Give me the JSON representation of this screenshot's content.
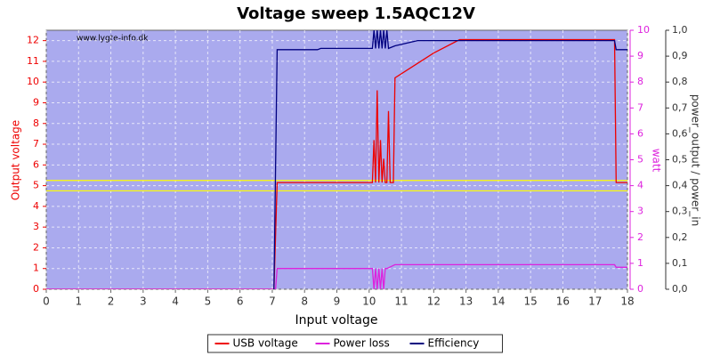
{
  "chart_data": {
    "type": "line",
    "title": "Voltage sweep 1.5AQC12V",
    "watermark": "www.lygte-info.dk",
    "xlabel": "Input voltage",
    "ylabel": "Output voltage",
    "y2label": "watt",
    "y3label": "power_output / power_in",
    "xlim": [
      0,
      18
    ],
    "xticks": [
      0,
      1,
      2,
      3,
      4,
      5,
      6,
      7,
      8,
      9,
      10,
      11,
      12,
      13,
      14,
      15,
      16,
      17,
      18
    ],
    "ylim": [
      0,
      12.5
    ],
    "yticks": [
      0,
      1,
      2,
      3,
      4,
      5,
      6,
      7,
      8,
      9,
      10,
      11,
      12
    ],
    "y2lim": [
      0,
      10
    ],
    "y2ticks": [
      0,
      1,
      2,
      3,
      4,
      5,
      6,
      7,
      8,
      9,
      10
    ],
    "y3lim": [
      0,
      1
    ],
    "y3ticks": [
      {
        "value": 0,
        "label": "0,0"
      },
      {
        "value": 0.1,
        "label": "0,1"
      },
      {
        "value": 0.2,
        "label": "0,2"
      },
      {
        "value": 0.3,
        "label": "0,3"
      },
      {
        "value": 0.4,
        "label": "0,4"
      },
      {
        "value": 0.5,
        "label": "0,5"
      },
      {
        "value": 0.6,
        "label": "0,6"
      },
      {
        "value": 0.7,
        "label": "0,7"
      },
      {
        "value": 0.8,
        "label": "0,8"
      },
      {
        "value": 0.9,
        "label": "0,9"
      },
      {
        "value": 1,
        "label": "1,0"
      }
    ],
    "grid": true,
    "legend": "bottom",
    "reference_lines": {
      "color": "#ffff00",
      "values": [
        4.75,
        5.25
      ]
    },
    "series": [
      {
        "name": "USB voltage",
        "color": "#ee0000",
        "axis": "y",
        "x": [
          0,
          7.05,
          7.15,
          10.1,
          10.15,
          10.2,
          10.25,
          10.3,
          10.35,
          10.4,
          10.45,
          10.5,
          10.55,
          10.6,
          10.65,
          10.7,
          10.75,
          10.8,
          11.5,
          12.0,
          12.8,
          17.6,
          17.65,
          18
        ],
        "values": [
          0,
          0,
          5.15,
          5.15,
          7.2,
          5.15,
          9.6,
          5.15,
          7.2,
          5.15,
          6.3,
          5.15,
          5.15,
          8.6,
          5.15,
          5.15,
          5.15,
          10.2,
          10.9,
          11.4,
          12.05,
          12.05,
          5.15,
          5.15
        ]
      },
      {
        "name": "Power loss",
        "color": "#dd22dd",
        "axis": "y2",
        "x": [
          0,
          7.0,
          7.1,
          7.15,
          10.1,
          10.15,
          10.2,
          10.25,
          10.3,
          10.35,
          10.4,
          10.45,
          10.5,
          10.55,
          10.8,
          12.5,
          13.0,
          17.6,
          17.65,
          18
        ],
        "values": [
          0,
          0,
          0,
          0.8,
          0.8,
          0,
          0.8,
          0,
          0.8,
          0,
          0.8,
          0,
          0.8,
          0.8,
          0.95,
          0.95,
          0.95,
          0.95,
          0.85,
          0.85
        ]
      },
      {
        "name": "Efficiency",
        "color": "#000080",
        "axis": "y3",
        "x": [
          7.05,
          7.15,
          8.4,
          8.5,
          10.1,
          10.15,
          10.2,
          10.25,
          10.3,
          10.35,
          10.4,
          10.45,
          10.5,
          10.55,
          10.6,
          10.8,
          11.5,
          17.5,
          17.6,
          17.65,
          18
        ],
        "values": [
          0,
          0.925,
          0.925,
          0.93,
          0.93,
          1.0,
          0.93,
          1.0,
          0.93,
          1.0,
          0.93,
          1.0,
          0.93,
          1.0,
          0.93,
          0.94,
          0.96,
          0.96,
          0.96,
          0.925,
          0.925
        ]
      }
    ]
  }
}
